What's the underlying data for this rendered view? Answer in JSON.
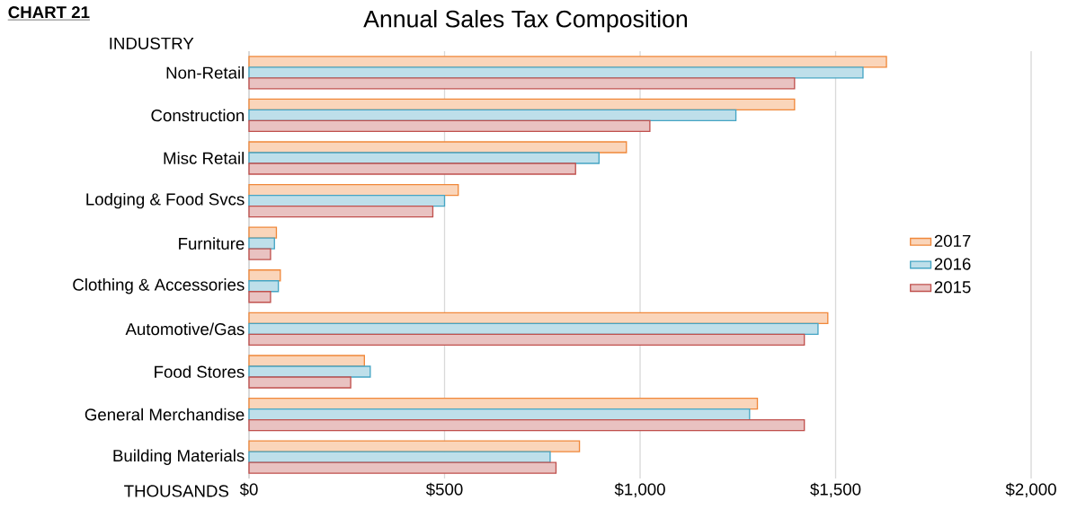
{
  "chart_data": {
    "type": "bar",
    "orientation": "horizontal",
    "title": "Annual Sales Tax Composition",
    "xlabel": "THOUSANDS",
    "ylabel": "INDUSTRY",
    "annotations": [
      "CHART 21"
    ],
    "categories": [
      "Non-Retail",
      "Construction",
      "Misc Retail",
      "Lodging & Food Svcs",
      "Furniture",
      "Clothing & Accessories",
      "Automotive/Gas",
      "Food Stores",
      "General Merchandise",
      "Building Materials"
    ],
    "series": [
      {
        "name": "2017",
        "color": "#f0883a",
        "values": [
          1630,
          1395,
          965,
          535,
          70,
          80,
          1480,
          295,
          1300,
          845
        ]
      },
      {
        "name": "2016",
        "color": "#45a5c4",
        "values": [
          1570,
          1245,
          895,
          500,
          65,
          75,
          1455,
          310,
          1280,
          770
        ]
      },
      {
        "name": "2015",
        "color": "#c0504d",
        "values": [
          1395,
          1025,
          835,
          470,
          55,
          55,
          1420,
          260,
          1420,
          785
        ]
      }
    ],
    "xlim": [
      0,
      2000
    ],
    "xticks": [
      {
        "value": 0,
        "label": "$0"
      },
      {
        "value": 500,
        "label": "$500"
      },
      {
        "value": 1000,
        "label": "$1,000"
      },
      {
        "value": 1500,
        "label": "$1,500"
      },
      {
        "value": 2000,
        "label": "$2,000"
      }
    ],
    "grid": "x",
    "legend": "right"
  }
}
